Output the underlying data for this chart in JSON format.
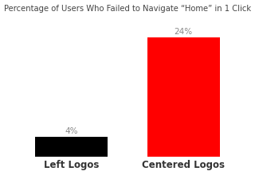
{
  "categories": [
    "Left Logos",
    "Centered Logos"
  ],
  "values": [
    4,
    24
  ],
  "bar_colors": [
    "#000000",
    "#ff0000"
  ],
  "labels": [
    "4%",
    "24%"
  ],
  "title": "Percentage of Users Who Failed to Navigate “Home” in 1 Click",
  "title_fontsize": 7.2,
  "label_fontsize": 7.5,
  "xlabel_fontsize": 8.5,
  "ylim": [
    0,
    28
  ],
  "bar_width": 0.65,
  "background_color": "#ffffff",
  "label_color": "#888888",
  "xlabel_color": "#333333"
}
